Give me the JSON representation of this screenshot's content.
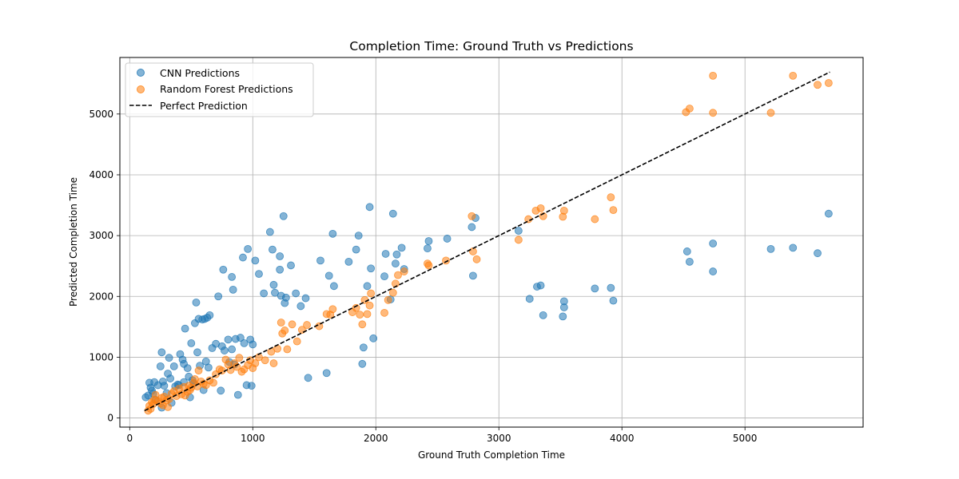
{
  "chart_data": {
    "type": "scatter",
    "title": "Completion Time: Ground Truth vs Predictions",
    "xlabel": "Ground Truth Completion Time",
    "ylabel": "Predicted Completion Time",
    "xlim": [
      -80,
      5960
    ],
    "ylim": [
      -150,
      5930
    ],
    "xticks": [
      0,
      1000,
      2000,
      3000,
      4000,
      5000
    ],
    "yticks": [
      0,
      1000,
      2000,
      3000,
      4000,
      5000
    ],
    "grid": true,
    "legend_position": "top-left",
    "series": [
      {
        "name": "CNN Predictions",
        "color": "#1f77b4",
        "points": [
          [
            130,
            340
          ],
          [
            150,
            370
          ],
          [
            160,
            580
          ],
          [
            170,
            500
          ],
          [
            180,
            450
          ],
          [
            190,
            400
          ],
          [
            200,
            590
          ],
          [
            210,
            300
          ],
          [
            230,
            540
          ],
          [
            250,
            850
          ],
          [
            260,
            1080
          ],
          [
            260,
            170
          ],
          [
            270,
            600
          ],
          [
            280,
            530
          ],
          [
            300,
            410
          ],
          [
            310,
            730
          ],
          [
            320,
            990
          ],
          [
            330,
            650
          ],
          [
            340,
            250
          ],
          [
            360,
            850
          ],
          [
            370,
            520
          ],
          [
            390,
            550
          ],
          [
            400,
            540
          ],
          [
            410,
            1050
          ],
          [
            430,
            960
          ],
          [
            440,
            590
          ],
          [
            440,
            890
          ],
          [
            450,
            1470
          ],
          [
            470,
            820
          ],
          [
            480,
            680
          ],
          [
            490,
            340
          ],
          [
            500,
            1230
          ],
          [
            510,
            620
          ],
          [
            520,
            570
          ],
          [
            530,
            1560
          ],
          [
            540,
            1900
          ],
          [
            550,
            1080
          ],
          [
            560,
            1630
          ],
          [
            570,
            860
          ],
          [
            590,
            1620
          ],
          [
            600,
            460
          ],
          [
            610,
            1630
          ],
          [
            620,
            930
          ],
          [
            630,
            1650
          ],
          [
            640,
            830
          ],
          [
            650,
            1690
          ],
          [
            670,
            1150
          ],
          [
            700,
            1220
          ],
          [
            720,
            2000
          ],
          [
            740,
            450
          ],
          [
            750,
            1180
          ],
          [
            760,
            2440
          ],
          [
            770,
            1110
          ],
          [
            800,
            1290
          ],
          [
            810,
            920
          ],
          [
            830,
            2320
          ],
          [
            830,
            1130
          ],
          [
            840,
            2110
          ],
          [
            850,
            880
          ],
          [
            860,
            1300
          ],
          [
            880,
            380
          ],
          [
            900,
            1320
          ],
          [
            920,
            2640
          ],
          [
            930,
            1230
          ],
          [
            950,
            540
          ],
          [
            960,
            2780
          ],
          [
            980,
            1290
          ],
          [
            990,
            530
          ],
          [
            1000,
            1210
          ],
          [
            1020,
            2590
          ],
          [
            1050,
            2370
          ],
          [
            1090,
            2050
          ],
          [
            1140,
            3060
          ],
          [
            1160,
            2770
          ],
          [
            1170,
            2190
          ],
          [
            1180,
            2060
          ],
          [
            1220,
            2660
          ],
          [
            1220,
            2440
          ],
          [
            1230,
            2010
          ],
          [
            1250,
            3320
          ],
          [
            1260,
            1890
          ],
          [
            1270,
            1980
          ],
          [
            1310,
            2510
          ],
          [
            1350,
            2050
          ],
          [
            1390,
            1840
          ],
          [
            1430,
            1970
          ],
          [
            1450,
            660
          ],
          [
            1550,
            2590
          ],
          [
            1600,
            740
          ],
          [
            1620,
            2340
          ],
          [
            1650,
            3030
          ],
          [
            1660,
            2170
          ],
          [
            1780,
            2570
          ],
          [
            1840,
            2770
          ],
          [
            1860,
            3000
          ],
          [
            1890,
            890
          ],
          [
            1900,
            1160
          ],
          [
            1930,
            2170
          ],
          [
            1950,
            3470
          ],
          [
            1960,
            2460
          ],
          [
            1980,
            1310
          ],
          [
            2070,
            2330
          ],
          [
            2080,
            2700
          ],
          [
            2120,
            1950
          ],
          [
            2140,
            3360
          ],
          [
            2160,
            2540
          ],
          [
            2170,
            2690
          ],
          [
            2210,
            2800
          ],
          [
            2230,
            2450
          ],
          [
            2420,
            2790
          ],
          [
            2430,
            2910
          ],
          [
            2580,
            2950
          ],
          [
            2780,
            3140
          ],
          [
            2790,
            2340
          ],
          [
            2810,
            3290
          ],
          [
            3160,
            3080
          ],
          [
            3250,
            1960
          ],
          [
            3310,
            2160
          ],
          [
            3340,
            2180
          ],
          [
            3360,
            1690
          ],
          [
            3520,
            1670
          ],
          [
            3530,
            1820
          ],
          [
            3530,
            1920
          ],
          [
            3780,
            2130
          ],
          [
            3910,
            2140
          ],
          [
            3930,
            1930
          ],
          [
            4530,
            2740
          ],
          [
            4550,
            2570
          ],
          [
            4740,
            2410
          ],
          [
            4740,
            2870
          ],
          [
            5210,
            2780
          ],
          [
            5390,
            2800
          ],
          [
            5590,
            2710
          ],
          [
            5680,
            3360
          ]
        ]
      },
      {
        "name": "Random Forest Predictions",
        "color": "#ff7f0e",
        "points": [
          [
            150,
            120
          ],
          [
            160,
            200
          ],
          [
            170,
            150
          ],
          [
            180,
            260
          ],
          [
            190,
            230
          ],
          [
            200,
            300
          ],
          [
            210,
            380
          ],
          [
            230,
            280
          ],
          [
            250,
            240
          ],
          [
            260,
            330
          ],
          [
            270,
            210
          ],
          [
            280,
            350
          ],
          [
            300,
            290
          ],
          [
            310,
            180
          ],
          [
            320,
            310
          ],
          [
            340,
            400
          ],
          [
            360,
            440
          ],
          [
            380,
            360
          ],
          [
            400,
            480
          ],
          [
            420,
            390
          ],
          [
            440,
            510
          ],
          [
            450,
            370
          ],
          [
            470,
            430
          ],
          [
            480,
            530
          ],
          [
            490,
            460
          ],
          [
            500,
            500
          ],
          [
            520,
            580
          ],
          [
            530,
            640
          ],
          [
            550,
            520
          ],
          [
            560,
            780
          ],
          [
            580,
            600
          ],
          [
            600,
            560
          ],
          [
            620,
            540
          ],
          [
            650,
            620
          ],
          [
            680,
            580
          ],
          [
            700,
            720
          ],
          [
            730,
            800
          ],
          [
            750,
            780
          ],
          [
            780,
            960
          ],
          [
            800,
            880
          ],
          [
            820,
            790
          ],
          [
            850,
            900
          ],
          [
            870,
            840
          ],
          [
            890,
            990
          ],
          [
            910,
            760
          ],
          [
            930,
            800
          ],
          [
            960,
            870
          ],
          [
            980,
            950
          ],
          [
            1000,
            820
          ],
          [
            1020,
            900
          ],
          [
            1050,
            1000
          ],
          [
            1100,
            950
          ],
          [
            1150,
            1090
          ],
          [
            1170,
            900
          ],
          [
            1200,
            1140
          ],
          [
            1230,
            1570
          ],
          [
            1240,
            1390
          ],
          [
            1260,
            1440
          ],
          [
            1280,
            1130
          ],
          [
            1320,
            1540
          ],
          [
            1360,
            1260
          ],
          [
            1400,
            1450
          ],
          [
            1440,
            1530
          ],
          [
            1540,
            1510
          ],
          [
            1600,
            1710
          ],
          [
            1630,
            1700
          ],
          [
            1650,
            1790
          ],
          [
            1810,
            1740
          ],
          [
            1840,
            1810
          ],
          [
            1870,
            1700
          ],
          [
            1890,
            1540
          ],
          [
            1910,
            1940
          ],
          [
            1930,
            1710
          ],
          [
            1950,
            1850
          ],
          [
            1960,
            2050
          ],
          [
            2070,
            1730
          ],
          [
            2100,
            1940
          ],
          [
            2140,
            2060
          ],
          [
            2160,
            2210
          ],
          [
            2180,
            2350
          ],
          [
            2230,
            2410
          ],
          [
            2420,
            2540
          ],
          [
            2430,
            2510
          ],
          [
            2570,
            2590
          ],
          [
            2780,
            3320
          ],
          [
            2790,
            2740
          ],
          [
            2820,
            2610
          ],
          [
            3160,
            2930
          ],
          [
            3240,
            3270
          ],
          [
            3300,
            3410
          ],
          [
            3340,
            3450
          ],
          [
            3360,
            3320
          ],
          [
            3520,
            3310
          ],
          [
            3530,
            3410
          ],
          [
            3780,
            3270
          ],
          [
            3910,
            3630
          ],
          [
            3930,
            3420
          ],
          [
            4520,
            5030
          ],
          [
            4550,
            5090
          ],
          [
            4740,
            5630
          ],
          [
            4740,
            5020
          ],
          [
            5210,
            5020
          ],
          [
            5390,
            5630
          ],
          [
            5590,
            5480
          ],
          [
            5680,
            5510
          ]
        ]
      },
      {
        "name": "Perfect Prediction",
        "color": "#000000",
        "style": "dashed",
        "line": [
          [
            120,
            120
          ],
          [
            5690,
            5690
          ]
        ]
      }
    ]
  }
}
